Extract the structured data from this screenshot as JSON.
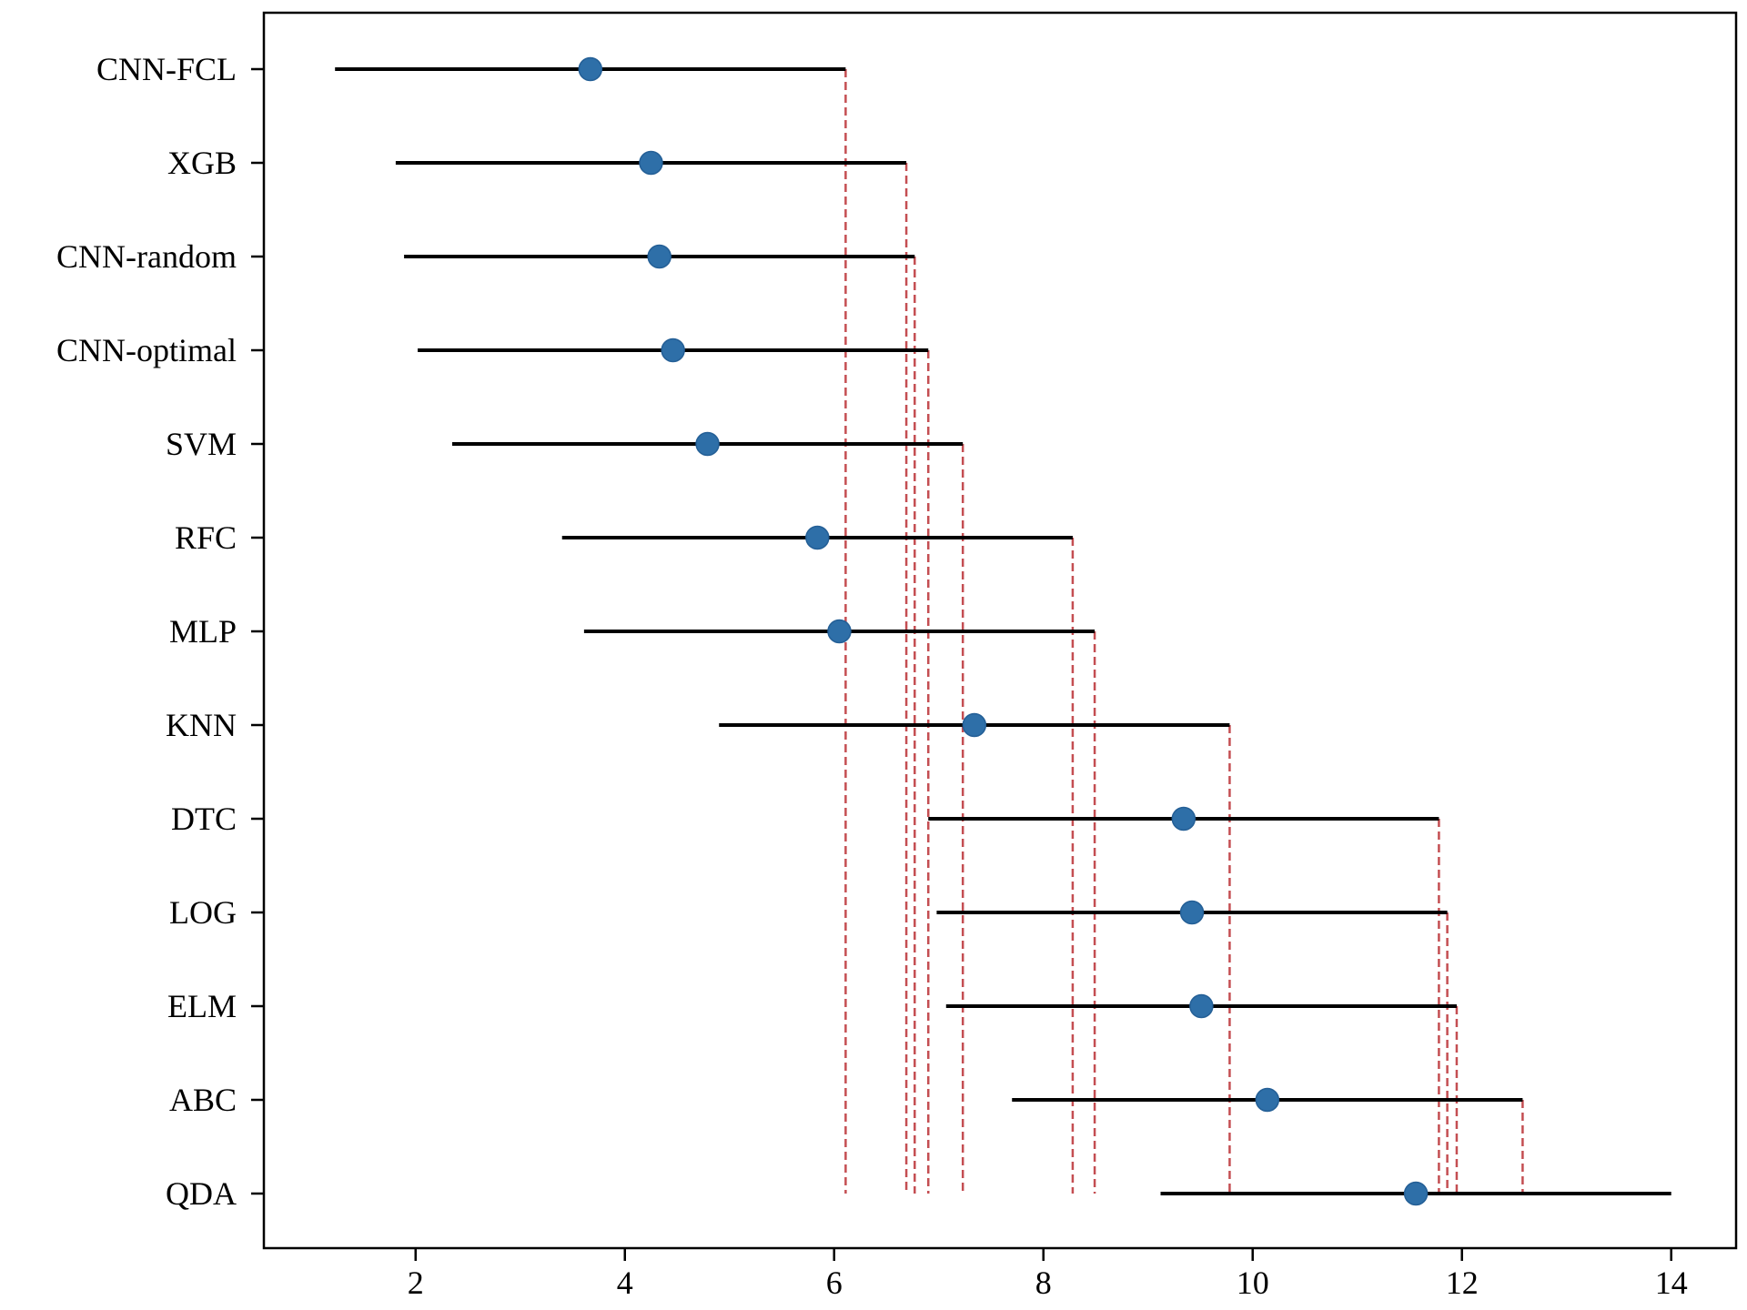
{
  "chart_data": {
    "type": "critical-difference-intervals",
    "title": "",
    "xlabel": "",
    "ylabel": "",
    "xlim": [
      0.55,
      14.62
    ],
    "xticks": [
      2,
      4,
      6,
      8,
      10,
      12,
      14
    ],
    "colors": {
      "point": "#2e6fa8",
      "interval": "#000000",
      "guide": "#c44e52"
    },
    "rows": [
      {
        "label": "CNN-FCL",
        "rank": 3.67,
        "low": 1.23,
        "high": 6.11
      },
      {
        "label": "XGB",
        "rank": 4.25,
        "low": 1.81,
        "high": 6.69
      },
      {
        "label": "CNN-random",
        "rank": 4.33,
        "low": 1.89,
        "high": 6.77
      },
      {
        "label": "CNN-optimal",
        "rank": 4.46,
        "low": 2.02,
        "high": 6.9
      },
      {
        "label": "SVM",
        "rank": 4.79,
        "low": 2.35,
        "high": 7.23
      },
      {
        "label": "RFC",
        "rank": 5.84,
        "low": 3.4,
        "high": 8.28
      },
      {
        "label": "MLP",
        "rank": 6.05,
        "low": 3.61,
        "high": 8.49
      },
      {
        "label": "KNN",
        "rank": 7.34,
        "low": 4.9,
        "high": 9.78
      },
      {
        "label": "DTC",
        "rank": 9.34,
        "low": 6.9,
        "high": 11.78
      },
      {
        "label": "LOG",
        "rank": 9.42,
        "low": 6.98,
        "high": 11.86
      },
      {
        "label": "ELM",
        "rank": 9.51,
        "low": 7.07,
        "high": 11.95
      },
      {
        "label": "ABC",
        "rank": 10.14,
        "low": 7.7,
        "high": 12.58
      },
      {
        "label": "QDA",
        "rank": 11.56,
        "low": 9.12,
        "high": 14.0
      }
    ]
  }
}
